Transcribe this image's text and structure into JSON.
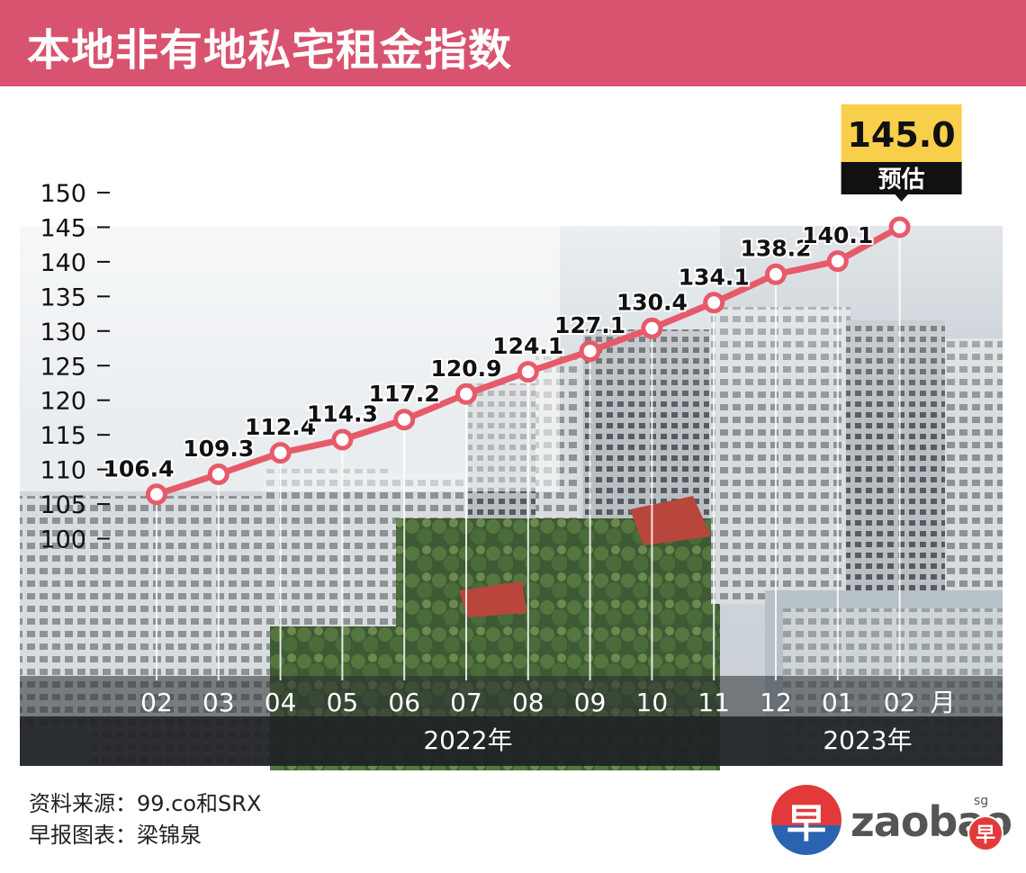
{
  "title": "本地非有地私宅租金指数",
  "chart_data": {
    "type": "line",
    "categories": [
      "02",
      "03",
      "04",
      "05",
      "06",
      "07",
      "08",
      "09",
      "10",
      "11",
      "12",
      "01",
      "02"
    ],
    "values": [
      106.4,
      109.3,
      112.4,
      114.3,
      117.2,
      120.9,
      124.1,
      127.1,
      130.4,
      134.1,
      138.2,
      140.1,
      145.0
    ],
    "value_labels": [
      "106.4",
      "109.3",
      "112.4",
      "114.3",
      "117.2",
      "120.9",
      "124.1",
      "127.1",
      "130.4",
      "134.1",
      "138.2",
      "140.1",
      "145.0"
    ],
    "y_ticks": [
      "150",
      "145",
      "140",
      "135",
      "130",
      "125",
      "120",
      "115",
      "110",
      "105",
      "100"
    ],
    "ylim": [
      100,
      150
    ],
    "x_unit": "月",
    "year_labels": [
      {
        "label": "2022年",
        "from": 0,
        "to": 10
      },
      {
        "label": "2023年",
        "from": 11,
        "to": 12
      }
    ],
    "estimate": {
      "index": 12,
      "value_label": "145.0",
      "tag": "预估"
    },
    "colors": {
      "line": "#e75a69",
      "marker_fill": "#ffffff",
      "callout_value_bg": "#f7cf4a",
      "callout_tag_bg": "#111111"
    }
  },
  "footer": {
    "source": "资料来源：99.co和SRX",
    "credit": "早报图表：梁锦泉"
  },
  "logo": {
    "text": "zaobao",
    "sg": "sg",
    "emblem_char": "早"
  }
}
